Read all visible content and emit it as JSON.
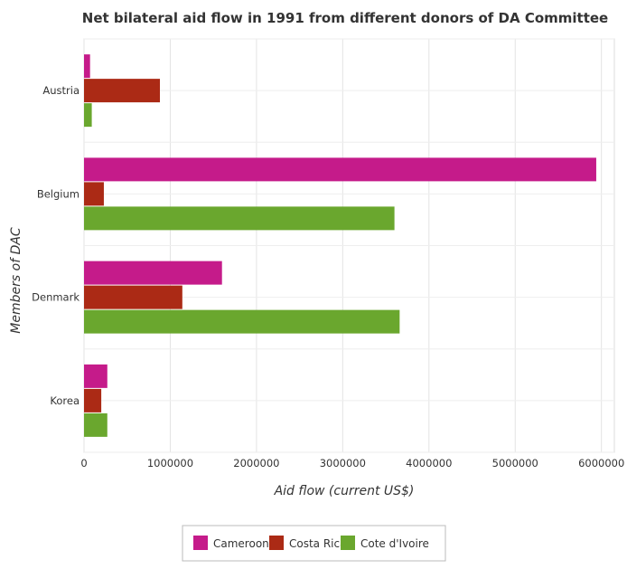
{
  "chart_data": {
    "type": "bar",
    "orientation": "horizontal",
    "title": "Net bilateral aid flow in 1991 from different donors of DA Committee",
    "xlabel": "Aid flow (current US$)",
    "ylabel": "Members of DAC",
    "categories": [
      "Austria",
      "Belgium",
      "Denmark",
      "Korea"
    ],
    "x_ticks": [
      "0",
      "1000000",
      "2000000",
      "3000000",
      "4000000",
      "5000000",
      "6000000"
    ],
    "xlim": [
      0,
      6150000
    ],
    "grid": true,
    "legend_position": "bottom",
    "series": [
      {
        "name": "Cameroon",
        "color": "#c51b8a",
        "values": [
          70000,
          5940000,
          1600000,
          270000
        ]
      },
      {
        "name": "Costa Rica",
        "color": "#ab2a15",
        "values": [
          880000,
          230000,
          1140000,
          200000
        ]
      },
      {
        "name": "Cote d'Ivoire",
        "color": "#6aa72e",
        "values": [
          90000,
          3600000,
          3660000,
          270000
        ]
      }
    ]
  }
}
